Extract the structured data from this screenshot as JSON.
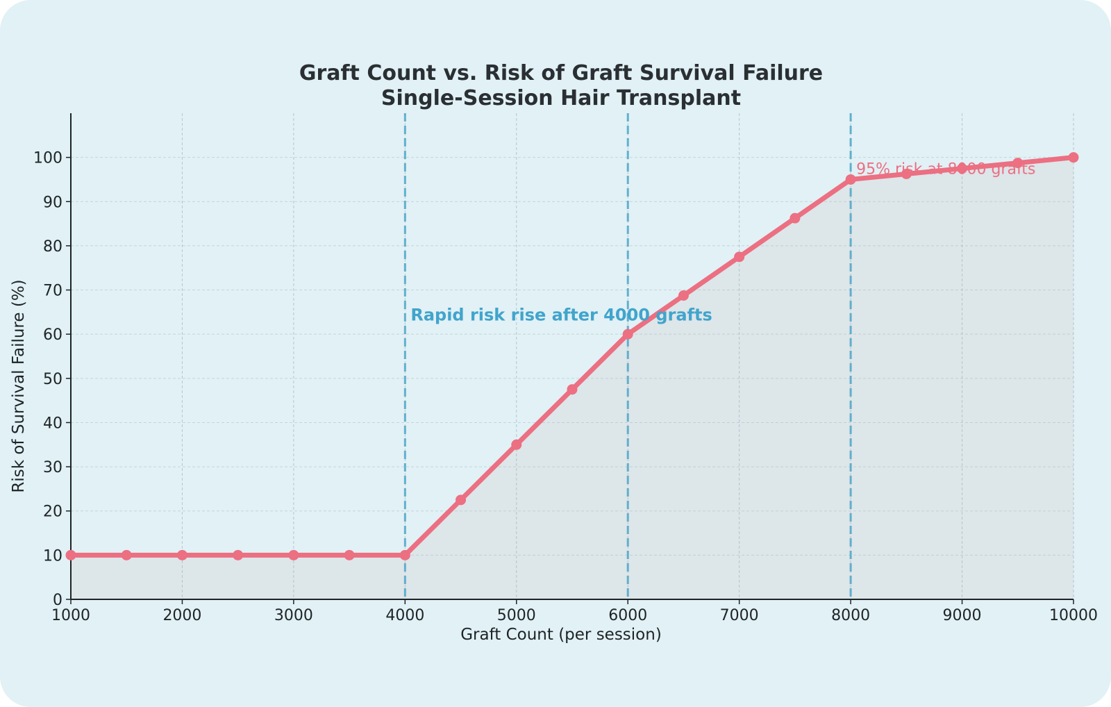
{
  "chart_data": {
    "type": "line",
    "title": "Graft Count vs. Risk of Graft Survival Failure",
    "subtitle": "Single-Session Hair Transplant",
    "xlabel": "Graft Count (per session)",
    "ylabel": "Risk of Survival Failure (%)",
    "xlim": [
      1000,
      10000
    ],
    "ylim": [
      0,
      110
    ],
    "xticks": [
      1000,
      2000,
      3000,
      4000,
      5000,
      6000,
      7000,
      8000,
      9000,
      10000
    ],
    "yticks": [
      0,
      10,
      20,
      30,
      40,
      50,
      60,
      70,
      80,
      90,
      100
    ],
    "grid": true,
    "area_fill": true,
    "x": [
      1000,
      1500,
      2000,
      2500,
      3000,
      3500,
      4000,
      4500,
      5000,
      5500,
      6000,
      6500,
      7000,
      7500,
      8000,
      8500,
      9000,
      9500,
      10000
    ],
    "y": [
      10,
      10,
      10,
      10,
      10,
      10,
      10,
      22.5,
      35,
      47.5,
      60,
      68.75,
      77.5,
      86.25,
      95,
      96.25,
      97.5,
      98.75,
      100
    ],
    "reference_lines_x": [
      4000,
      6000,
      8000
    ],
    "annotations": [
      {
        "text": "Rapid risk rise after 4000 grafts",
        "x": 4050,
        "y": 65
      },
      {
        "text": "95% risk at 8000 grafts",
        "x": 8050,
        "y": 97.5
      }
    ],
    "colors": {
      "line": "#ec6f82",
      "reference": "#4fa6c9",
      "annotation_blue": "#41a4cc",
      "annotation_red": "#ec6f82",
      "area": "#dde4e8",
      "grid": "#9fb6bf",
      "axis": "#1e2326"
    }
  }
}
